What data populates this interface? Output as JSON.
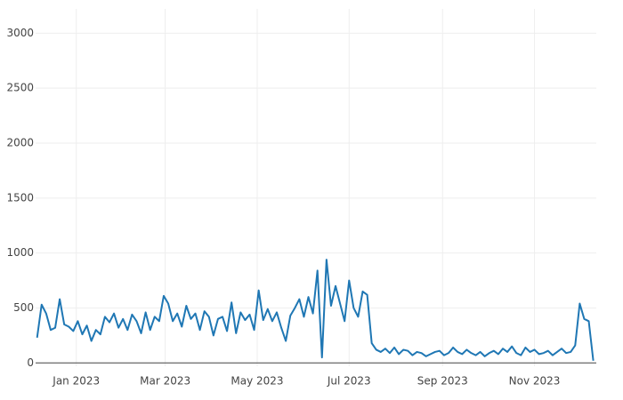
{
  "chart_data": {
    "type": "line",
    "x": [
      "2022-12-06",
      "2022-12-09",
      "2022-12-12",
      "2022-12-15",
      "2022-12-18",
      "2022-12-21",
      "2022-12-24",
      "2022-12-27",
      "2022-12-30",
      "2023-01-02",
      "2023-01-05",
      "2023-01-08",
      "2023-01-11",
      "2023-01-14",
      "2023-01-17",
      "2023-01-20",
      "2023-01-23",
      "2023-01-26",
      "2023-01-29",
      "2023-02-01",
      "2023-02-04",
      "2023-02-07",
      "2023-02-10",
      "2023-02-13",
      "2023-02-16",
      "2023-02-19",
      "2023-02-22",
      "2023-02-25",
      "2023-02-28",
      "2023-03-03",
      "2023-03-06",
      "2023-03-09",
      "2023-03-12",
      "2023-03-15",
      "2023-03-18",
      "2023-03-21",
      "2023-03-24",
      "2023-03-27",
      "2023-03-30",
      "2023-04-02",
      "2023-04-05",
      "2023-04-08",
      "2023-04-11",
      "2023-04-14",
      "2023-04-17",
      "2023-04-20",
      "2023-04-23",
      "2023-04-26",
      "2023-04-29",
      "2023-05-02",
      "2023-05-05",
      "2023-05-08",
      "2023-05-11",
      "2023-05-14",
      "2023-05-17",
      "2023-05-20",
      "2023-05-23",
      "2023-05-26",
      "2023-05-29",
      "2023-06-01",
      "2023-06-04",
      "2023-06-07",
      "2023-06-10",
      "2023-06-13",
      "2023-06-16",
      "2023-06-19",
      "2023-06-22",
      "2023-06-25",
      "2023-06-28",
      "2023-07-01",
      "2023-07-04",
      "2023-07-07",
      "2023-07-10",
      "2023-07-13",
      "2023-07-16",
      "2023-07-19",
      "2023-07-22",
      "2023-07-25",
      "2023-07-28",
      "2023-07-31",
      "2023-08-03",
      "2023-08-06",
      "2023-08-09",
      "2023-08-12",
      "2023-08-15",
      "2023-08-18",
      "2023-08-21",
      "2023-08-24",
      "2023-08-27",
      "2023-08-30",
      "2023-09-02",
      "2023-09-05",
      "2023-09-08",
      "2023-09-11",
      "2023-09-14",
      "2023-09-17",
      "2023-09-20",
      "2023-09-23",
      "2023-09-26",
      "2023-09-29",
      "2023-10-02",
      "2023-10-05",
      "2023-10-08",
      "2023-10-11",
      "2023-10-14",
      "2023-10-17",
      "2023-10-20",
      "2023-10-23",
      "2023-10-26",
      "2023-10-29",
      "2023-11-01",
      "2023-11-04",
      "2023-11-07",
      "2023-11-10",
      "2023-11-13",
      "2023-11-16",
      "2023-11-19",
      "2023-11-22",
      "2023-11-25",
      "2023-11-28",
      "2023-12-01",
      "2023-12-04",
      "2023-12-07",
      "2023-12-10"
    ],
    "series": [
      {
        "color": "#1f77b4",
        "values": [
          230,
          530,
          450,
          300,
          320,
          580,
          350,
          330,
          290,
          380,
          260,
          340,
          200,
          300,
          260,
          420,
          370,
          450,
          320,
          400,
          300,
          440,
          380,
          270,
          460,
          300,
          420,
          380,
          610,
          540,
          380,
          450,
          330,
          520,
          400,
          450,
          300,
          470,
          420,
          250,
          400,
          420,
          290,
          550,
          270,
          460,
          390,
          440,
          300,
          660,
          390,
          490,
          380,
          460,
          320,
          200,
          430,
          500,
          580,
          420,
          600,
          450,
          840,
          50,
          940,
          520,
          700,
          540,
          380,
          750,
          500,
          420,
          650,
          620,
          180,
          120,
          100,
          130,
          90,
          140,
          80,
          120,
          110,
          70,
          100,
          90,
          60,
          80,
          100,
          110,
          70,
          90,
          140,
          100,
          80,
          120,
          90,
          70,
          100,
          60,
          90,
          110,
          80,
          130,
          100,
          150,
          90,
          70,
          140,
          100,
          120,
          80,
          90,
          110,
          70,
          100,
          130,
          90,
          100,
          160,
          540,
          400,
          380,
          20
        ]
      }
    ],
    "xlim": [
      "2022-12-05",
      "2023-12-12"
    ],
    "xticks": [
      {
        "value": "2023-01-01",
        "label": "Jan 2023"
      },
      {
        "value": "2023-03-01",
        "label": "Mar 2023"
      },
      {
        "value": "2023-05-01",
        "label": "May 2023"
      },
      {
        "value": "2023-07-01",
        "label": "Jul 2023"
      },
      {
        "value": "2023-09-01",
        "label": "Sep 2023"
      },
      {
        "value": "2023-11-01",
        "label": "Nov 2023"
      }
    ],
    "ylim": [
      -30,
      3100
    ],
    "yticks": [
      0,
      500,
      1000,
      1500,
      2000,
      2500,
      3000
    ],
    "grid": true
  }
}
